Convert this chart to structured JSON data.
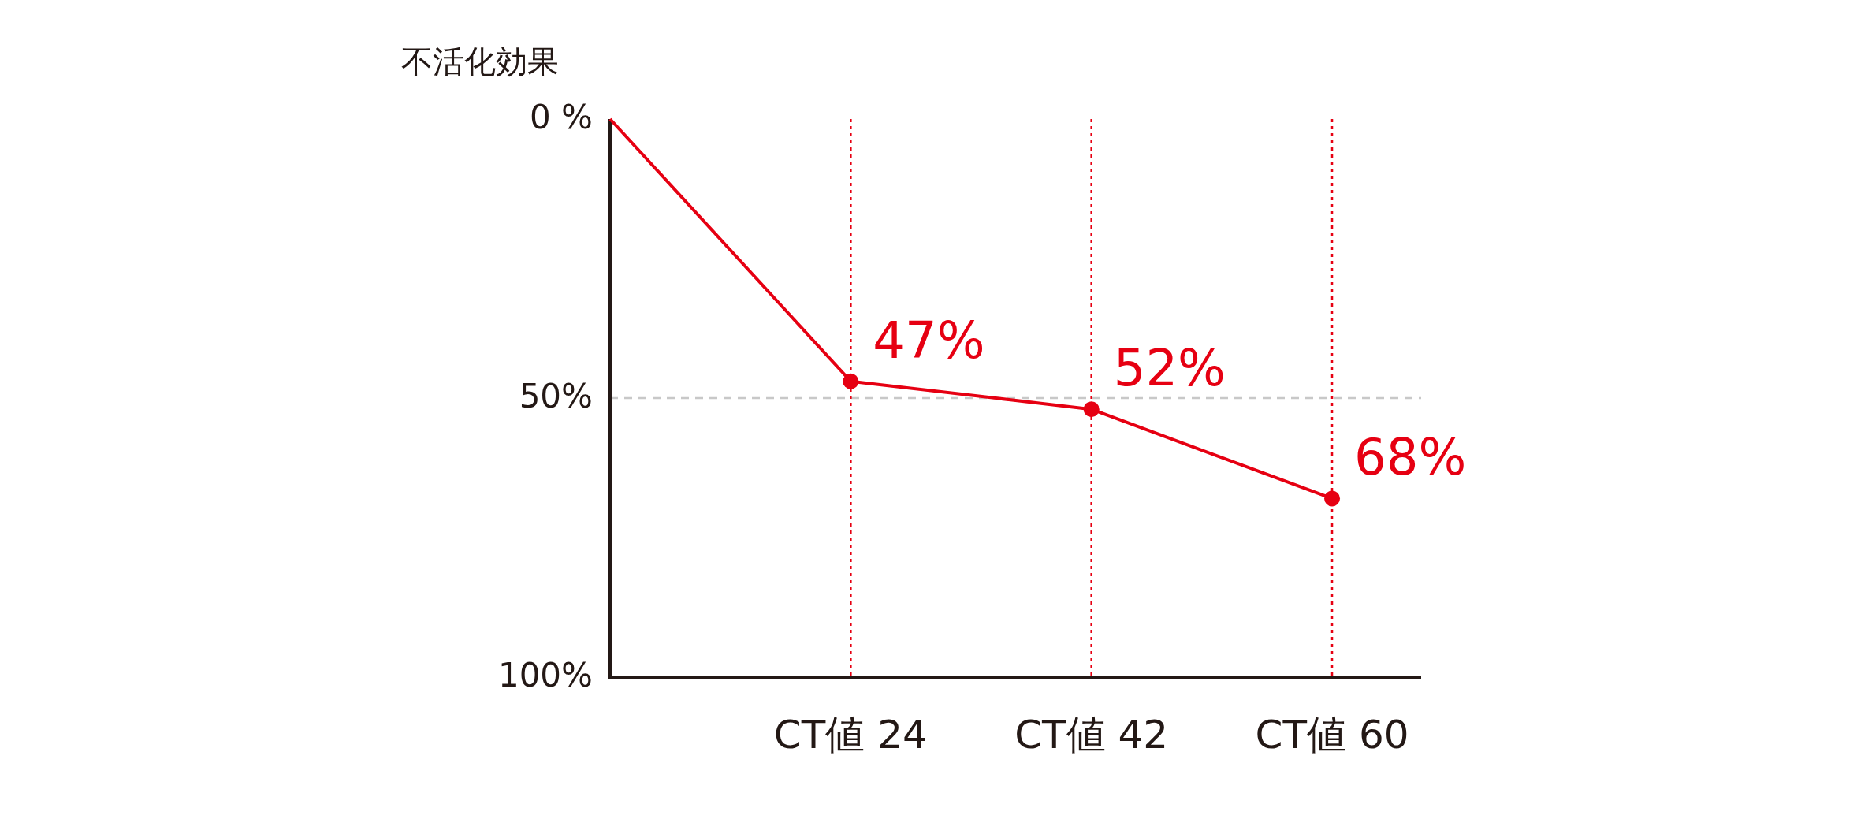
{
  "chart_data": {
    "type": "line",
    "ylabel": "不活化効果",
    "categories": [
      null,
      "CT値 24",
      "CT値 42",
      "CT値 60"
    ],
    "series": [
      {
        "color": "#e60012",
        "values": [
          0,
          47,
          52,
          68
        ],
        "value_labels": [
          null,
          "47%",
          "52%",
          "68%"
        ]
      }
    ],
    "ylim": [
      100,
      0
    ],
    "yticks": [
      {
        "value": 0,
        "label": "0 %"
      },
      {
        "value": 50,
        "label": "50%"
      },
      {
        "value": 100,
        "label": "100%"
      }
    ],
    "marker": "circle",
    "line_style": "solid",
    "grid": false,
    "ref_lines": [
      {
        "axis": "y",
        "value": 50,
        "color": "#c8c8c8",
        "line_style": "dashed"
      },
      {
        "axis": "x",
        "value": "CT値 24",
        "color": "#e60012",
        "line_style": "dotted"
      },
      {
        "axis": "x",
        "value": "CT値 42",
        "color": "#e60012",
        "line_style": "dotted"
      },
      {
        "axis": "x",
        "value": "CT値 60",
        "color": "#e60012",
        "line_style": "dotted"
      }
    ]
  }
}
